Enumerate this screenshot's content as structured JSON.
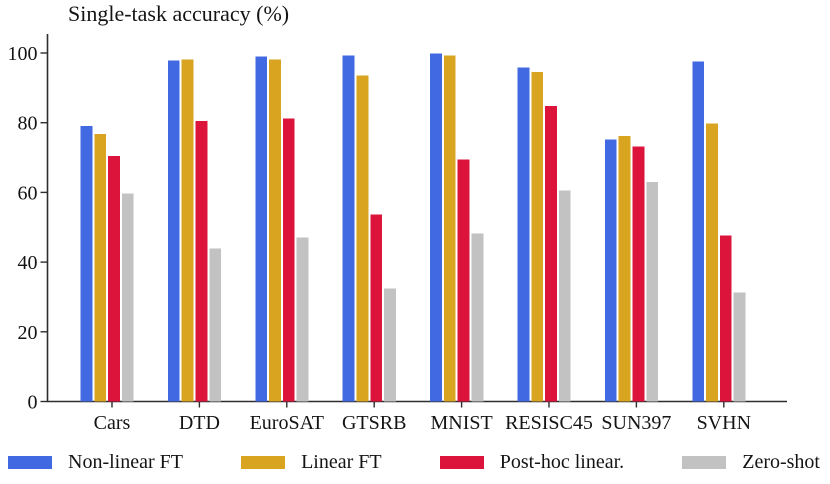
{
  "chart_data": {
    "type": "bar",
    "title": "Single-task accuracy (%)",
    "categories": [
      "Cars",
      "DTD",
      "EuroSAT",
      "GTSRB",
      "MNIST",
      "RESISC45",
      "SUN397",
      "SVHN"
    ],
    "series": [
      {
        "name": "Non-linear FT",
        "color": "#4169E1",
        "values": [
          79.0,
          97.8,
          99.0,
          99.3,
          99.8,
          95.9,
          75.2,
          97.5
        ]
      },
      {
        "name": "Linear FT",
        "color": "#D9A521",
        "values": [
          76.7,
          98.2,
          98.2,
          93.6,
          99.3,
          94.6,
          76.2,
          79.8
        ]
      },
      {
        "name": "Post-hoc linear.",
        "color": "#DC143C",
        "values": [
          70.5,
          80.5,
          81.2,
          53.6,
          69.5,
          84.8,
          73.1,
          47.7
        ]
      },
      {
        "name": "Zero-shot",
        "color": "#C2C2C2",
        "values": [
          59.7,
          43.9,
          47.0,
          32.4,
          48.2,
          60.6,
          63.0,
          31.3
        ]
      }
    ],
    "xlabel": "",
    "ylabel": "",
    "ylim": [
      0,
      100
    ],
    "yticks": [
      0,
      20,
      40,
      60,
      80,
      100
    ],
    "grid": false,
    "legend_position": "bottom"
  }
}
